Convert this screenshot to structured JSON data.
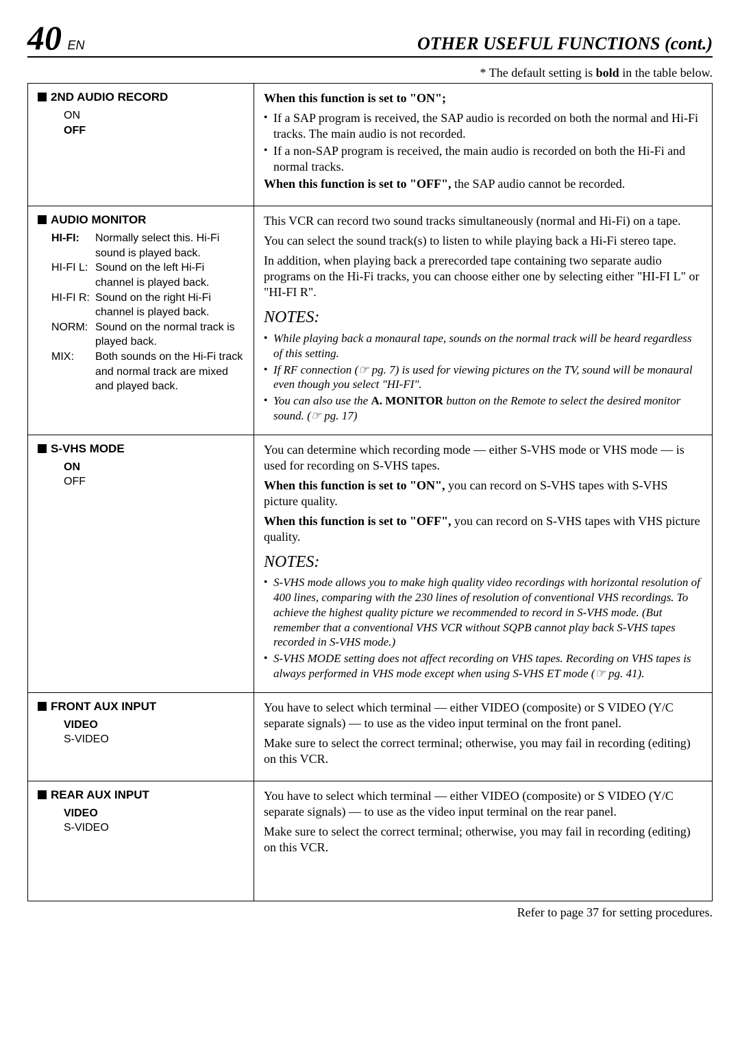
{
  "header": {
    "page_number": "40",
    "en": "EN",
    "section_title": "OTHER USEFUL FUNCTIONS (cont.)"
  },
  "default_note": {
    "prefix": "* The default setting is ",
    "bold": "bold",
    "suffix": " in the table below."
  },
  "rows": [
    {
      "setting": {
        "title": "2ND AUDIO RECORD",
        "options": [
          "ON",
          "OFF"
        ],
        "default_index": 1
      },
      "desc": {
        "lead_bold": "When this function is set to \"ON\";",
        "bullets": [
          "If a SAP program is received, the SAP audio is recorded on both the normal and Hi-Fi tracks. The main audio is not recorded.",
          "If a non-SAP program is received, the main audio is recorded on both the Hi-Fi and normal tracks."
        ],
        "tail_bold": "When this function is set to \"OFF\",",
        "tail_rest": " the SAP audio cannot be recorded."
      }
    },
    {
      "setting": {
        "title": "AUDIO MONITOR",
        "defs": [
          {
            "term": "HI-FI:",
            "desc": "Normally select this. Hi-Fi sound is played back.",
            "first": true
          },
          {
            "term": "HI-FI L:",
            "desc": "Sound on the left Hi-Fi channel is played back."
          },
          {
            "term": "HI-FI R:",
            "desc": "Sound on the right Hi-Fi channel is played back."
          },
          {
            "term": "NORM:",
            "desc": "Sound on the normal track is played back."
          },
          {
            "term": "MIX:",
            "desc": "Both sounds on the Hi-Fi track and normal track are mixed and played back."
          }
        ]
      },
      "desc": {
        "paras": [
          "This VCR can record two sound tracks simultaneously (normal and Hi-Fi) on a tape.",
          "You can select the sound track(s) to listen to while playing back a Hi-Fi stereo tape.",
          "In addition, when playing back a prerecorded tape containing two separate audio programs on the Hi-Fi tracks, you can choose either one by selecting either \"HI-FI L\" or \"HI-FI R\"."
        ],
        "notes_head": "NOTES:",
        "notes": [
          "While playing back a monaural tape, sounds on the normal track will be heard regardless of this setting.",
          {
            "pre": "If RF connection (",
            "ref": "☞ pg. 7",
            "post": ") is used for viewing pictures on the TV, sound will be monaural even though you select \"HI-FI\"."
          },
          {
            "pre": "You can also use the ",
            "bold": "A. MONITOR",
            "mid": " button on the Remote to select the desired monitor sound. (",
            "ref": "☞ pg. 17",
            "post": ")"
          }
        ]
      }
    },
    {
      "setting": {
        "title": "S-VHS MODE",
        "options": [
          "ON",
          "OFF"
        ],
        "default_index": 0
      },
      "desc": {
        "paras": [
          "You can determine which recording mode — either S-VHS mode or VHS mode — is used for recording on S-VHS tapes."
        ],
        "on_bold": "When this function is set to \"ON\",",
        "on_rest": " you can record on S-VHS tapes with S-VHS picture quality.",
        "off_bold": "When this function is set to \"OFF\",",
        "off_rest": " you can record on S-VHS tapes with VHS picture quality.",
        "notes_head": "NOTES:",
        "notes": [
          "S-VHS mode allows you to make high quality video recordings with horizontal resolution of 400 lines, comparing with the 230 lines of resolution of conventional VHS recordings. To achieve the highest quality picture we recommended to record in S-VHS mode. (But remember that a conventional VHS VCR without SQPB cannot play back S-VHS tapes recorded in S-VHS mode.)",
          {
            "pre": "S-VHS MODE setting does not affect recording on VHS tapes. Recording on VHS tapes is always performed in VHS mode except when using S-VHS ET mode (",
            "ref": "☞ pg. 41",
            "post": ")."
          }
        ]
      }
    },
    {
      "setting": {
        "title": "FRONT AUX INPUT",
        "options": [
          "VIDEO",
          "S-VIDEO"
        ],
        "default_index": 0
      },
      "desc": {
        "paras": [
          "You have to select which terminal — either VIDEO (composite) or S VIDEO (Y/C separate signals) — to use as the video input terminal on the front panel.",
          "Make sure to select the correct terminal; otherwise, you may fail in recording (editing) on this VCR."
        ]
      }
    },
    {
      "setting": {
        "title": "REAR AUX INPUT",
        "options": [
          "VIDEO",
          "S-VIDEO"
        ],
        "default_index": 0
      },
      "desc": {
        "paras": [
          "You have to select which terminal — either VIDEO (composite) or S VIDEO (Y/C separate signals) — to use as the video input terminal on the rear panel.",
          "Make sure to select the correct terminal; otherwise, you may fail in recording (editing) on this VCR."
        ],
        "pad_bottom": 60
      }
    }
  ],
  "footer": "Refer to page 37 for setting procedures."
}
